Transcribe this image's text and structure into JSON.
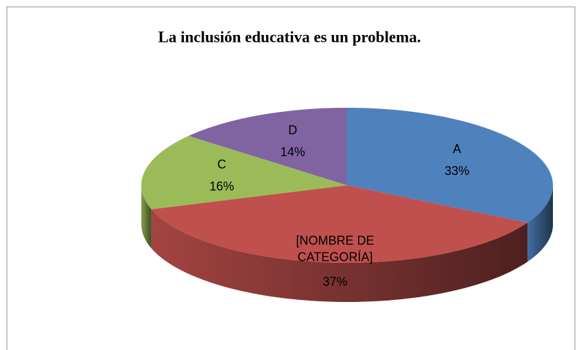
{
  "chart_data": {
    "type": "pie",
    "title": "La inclusión educativa es un problema.",
    "categories": [
      "A",
      "[NOMBRE DE CATEGORÍA]",
      "C",
      "D"
    ],
    "values": [
      33,
      37,
      16,
      14
    ],
    "value_labels": [
      "33%",
      "37%",
      "16%",
      "14%"
    ],
    "colors": [
      "#4f81bd",
      "#c0504d",
      "#9bbb59",
      "#8064a2"
    ]
  }
}
